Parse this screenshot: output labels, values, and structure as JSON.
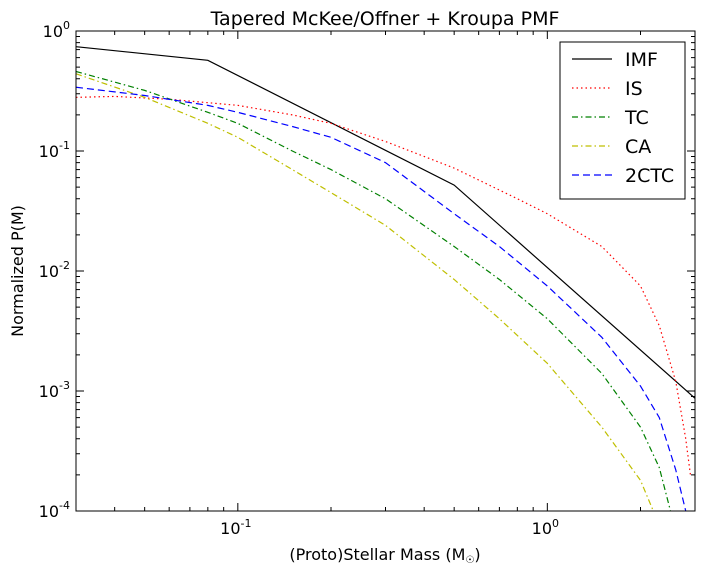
{
  "chart_data": {
    "type": "line",
    "title": "Tapered McKee/Offner + Kroupa PMF",
    "xlabel": "(Proto)Stellar Mass (M",
    "xlabel_symbol": "☉",
    "xlabel_close": ")",
    "ylabel": "Normalized P(M)",
    "xscale": "log",
    "yscale": "log",
    "xlim": [
      0.03,
      3.0
    ],
    "ylim": [
      0.0001,
      1.0
    ],
    "grid": false,
    "legend_position": "top-right",
    "x_ticks": [
      {
        "value": 0.1,
        "base": "10",
        "exp": "-1"
      },
      {
        "value": 1.0,
        "base": "10",
        "exp": "0"
      }
    ],
    "y_ticks": [
      {
        "value": 1.0,
        "base": "10",
        "exp": "0"
      },
      {
        "value": 0.1,
        "base": "10",
        "exp": "-1"
      },
      {
        "value": 0.01,
        "base": "10",
        "exp": "-2"
      },
      {
        "value": 0.001,
        "base": "10",
        "exp": "-3"
      },
      {
        "value": 0.0001,
        "base": "10",
        "exp": "-4"
      }
    ],
    "series": [
      {
        "name": "IMF",
        "color": "#000000",
        "dash": "solid",
        "x": [
          0.03,
          0.08,
          0.5,
          3.0
        ],
        "y": [
          0.74,
          0.57,
          0.052,
          0.00087
        ]
      },
      {
        "name": "IS",
        "color": "#ff0000",
        "dash": "dotted",
        "x": [
          0.03,
          0.04,
          0.06,
          0.1,
          0.15,
          0.2,
          0.3,
          0.5,
          0.8,
          1.0,
          1.5,
          2.0,
          2.3,
          2.6,
          2.8,
          2.9
        ],
        "y": [
          0.28,
          0.285,
          0.27,
          0.24,
          0.2,
          0.17,
          0.12,
          0.072,
          0.04,
          0.03,
          0.016,
          0.0075,
          0.0035,
          0.0012,
          0.0004,
          0.0002
        ]
      },
      {
        "name": "TC",
        "color": "#008000",
        "dash": "dashdot",
        "x": [
          0.03,
          0.05,
          0.08,
          0.1,
          0.15,
          0.2,
          0.3,
          0.5,
          0.7,
          1.0,
          1.5,
          2.0,
          2.3,
          2.5
        ],
        "y": [
          0.46,
          0.32,
          0.21,
          0.17,
          0.1,
          0.07,
          0.04,
          0.016,
          0.0085,
          0.004,
          0.0014,
          0.0005,
          0.00023,
          0.0001
        ]
      },
      {
        "name": "CA",
        "color": "#bfbf00",
        "dash": "dashdot",
        "x": [
          0.03,
          0.05,
          0.08,
          0.1,
          0.15,
          0.2,
          0.3,
          0.5,
          0.7,
          1.0,
          1.5,
          2.0,
          2.2
        ],
        "y": [
          0.44,
          0.28,
          0.17,
          0.13,
          0.07,
          0.045,
          0.024,
          0.0085,
          0.004,
          0.0017,
          0.0005,
          0.00018,
          0.0001
        ]
      },
      {
        "name": "2CTC",
        "color": "#0000ff",
        "dash": "dashed",
        "x": [
          0.03,
          0.05,
          0.08,
          0.1,
          0.15,
          0.2,
          0.3,
          0.5,
          0.7,
          1.0,
          1.5,
          2.0,
          2.3,
          2.6,
          2.8
        ],
        "y": [
          0.34,
          0.29,
          0.24,
          0.21,
          0.16,
          0.13,
          0.08,
          0.03,
          0.016,
          0.0075,
          0.0028,
          0.0011,
          0.0006,
          0.00022,
          0.0001
        ]
      }
    ]
  }
}
